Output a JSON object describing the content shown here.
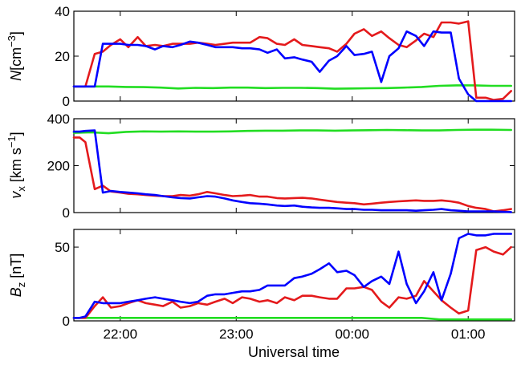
{
  "chart_data": [
    {
      "type": "line",
      "ylabel": {
        "var": "N",
        "unit": "[cm",
        "sup": "−3",
        "close": "]"
      },
      "ylim": [
        0,
        40
      ],
      "yticks": [
        0,
        20,
        40
      ],
      "xlim": [
        21.6,
        25.4
      ],
      "xticks": [
        22,
        23,
        24,
        25
      ],
      "xticklabels": [],
      "series": [
        {
          "color": "#e41a1c",
          "x": [
            21.6,
            21.65,
            21.7,
            21.78,
            21.85,
            21.92,
            22.0,
            22.07,
            22.15,
            22.22,
            22.3,
            22.37,
            22.45,
            22.52,
            22.6,
            22.67,
            22.75,
            22.82,
            22.9,
            22.97,
            23.05,
            23.12,
            23.2,
            23.27,
            23.35,
            23.42,
            23.5,
            23.57,
            23.65,
            23.72,
            23.8,
            23.87,
            23.95,
            24.02,
            24.1,
            24.17,
            24.25,
            24.32,
            24.4,
            24.47,
            24.55,
            24.62,
            24.7,
            24.77,
            24.85,
            24.92,
            25.0,
            25.07,
            25.15,
            25.22,
            25.3,
            25.37
          ],
          "y": [
            6.5,
            6.5,
            6.5,
            21,
            22,
            25,
            27.5,
            24,
            28.5,
            24.5,
            25,
            24.5,
            25.5,
            25.5,
            25.5,
            26,
            25.5,
            25,
            25.5,
            26,
            26,
            26,
            28.5,
            28,
            25.5,
            25,
            27.5,
            25,
            24.5,
            24,
            23.5,
            22,
            25.5,
            30,
            32,
            29,
            31,
            28,
            25,
            24,
            27,
            30,
            28.5,
            35,
            35,
            34.5,
            35.5,
            1.5,
            1.5,
            0.5,
            1,
            4.5
          ]
        },
        {
          "color": "#0000ff",
          "x": [
            21.6,
            21.65,
            21.7,
            21.78,
            21.85,
            21.92,
            22.0,
            22.07,
            22.15,
            22.22,
            22.3,
            22.37,
            22.45,
            22.52,
            22.6,
            22.67,
            22.75,
            22.82,
            22.9,
            22.97,
            23.05,
            23.12,
            23.2,
            23.27,
            23.35,
            23.42,
            23.5,
            23.57,
            23.65,
            23.72,
            23.8,
            23.87,
            23.95,
            24.02,
            24.1,
            24.17,
            24.25,
            24.32,
            24.4,
            24.47,
            24.55,
            24.62,
            24.7,
            24.77,
            24.85,
            24.92,
            25.0,
            25.07,
            25.15,
            25.22,
            25.3,
            25.37
          ],
          "y": [
            6.5,
            6.5,
            6.5,
            6.5,
            25.5,
            25.5,
            25.5,
            25,
            25,
            24.5,
            23,
            24.5,
            24,
            25,
            26.5,
            26,
            25,
            24,
            24,
            24,
            23.5,
            23.5,
            23,
            21.5,
            23,
            19,
            19.5,
            18.5,
            17.5,
            13,
            18,
            20,
            24.5,
            20.5,
            21,
            22,
            8.5,
            20,
            23.5,
            31,
            29,
            24.5,
            31,
            30.5,
            30.5,
            10,
            3,
            0,
            0,
            0,
            0,
            0
          ]
        },
        {
          "color": "#22dd22",
          "x": [
            21.6,
            21.75,
            21.9,
            22.05,
            22.2,
            22.35,
            22.5,
            22.65,
            22.8,
            22.95,
            23.1,
            23.25,
            23.4,
            23.55,
            23.7,
            23.85,
            24.0,
            24.15,
            24.3,
            24.45,
            24.6,
            24.75,
            24.9,
            25.05,
            25.2,
            25.37
          ],
          "y": [
            6.5,
            6.5,
            6.5,
            6.3,
            6.2,
            6.0,
            5.6,
            5.9,
            5.8,
            6.0,
            6.0,
            5.8,
            5.9,
            5.9,
            5.8,
            5.5,
            5.6,
            5.7,
            5.8,
            6.0,
            6.3,
            6.8,
            7.0,
            7.0,
            6.8,
            6.8
          ]
        }
      ]
    },
    {
      "type": "line",
      "ylabel": {
        "var": "v",
        "sub": "x",
        "unit": " [km s",
        "sup": "−1",
        "close": "]"
      },
      "ylim": [
        0,
        400
      ],
      "yticks": [
        0,
        200,
        400
      ],
      "xlim": [
        21.6,
        25.4
      ],
      "xticks": [
        22,
        23,
        24,
        25
      ],
      "xticklabels": [],
      "series": [
        {
          "color": "#e41a1c",
          "x": [
            21.6,
            21.65,
            21.7,
            21.78,
            21.85,
            21.92,
            22.0,
            22.07,
            22.15,
            22.22,
            22.3,
            22.37,
            22.45,
            22.52,
            22.6,
            22.67,
            22.75,
            22.82,
            22.9,
            22.97,
            23.05,
            23.12,
            23.2,
            23.27,
            23.35,
            23.42,
            23.5,
            23.57,
            23.65,
            23.72,
            23.8,
            23.87,
            23.95,
            24.02,
            24.1,
            24.17,
            24.25,
            24.32,
            24.4,
            24.47,
            24.55,
            24.62,
            24.7,
            24.77,
            24.85,
            24.92,
            25.0,
            25.07,
            25.15,
            25.22,
            25.3,
            25.37
          ],
          "y": [
            320,
            320,
            300,
            100,
            115,
            90,
            85,
            80,
            78,
            75,
            72,
            70,
            70,
            75,
            72,
            78,
            88,
            82,
            75,
            70,
            72,
            75,
            68,
            68,
            62,
            60,
            62,
            63,
            60,
            55,
            50,
            45,
            42,
            40,
            35,
            38,
            42,
            45,
            48,
            50,
            52,
            50,
            50,
            52,
            48,
            42,
            28,
            20,
            15,
            5,
            10,
            15
          ]
        },
        {
          "color": "#0000ff",
          "x": [
            21.6,
            21.65,
            21.7,
            21.78,
            21.85,
            21.92,
            22.0,
            22.07,
            22.15,
            22.22,
            22.3,
            22.37,
            22.45,
            22.52,
            22.6,
            22.67,
            22.75,
            22.82,
            22.9,
            22.97,
            23.05,
            23.12,
            23.2,
            23.27,
            23.35,
            23.42,
            23.5,
            23.57,
            23.65,
            23.72,
            23.8,
            23.87,
            23.95,
            24.02,
            24.1,
            24.17,
            24.25,
            24.32,
            24.4,
            24.47,
            24.55,
            24.62,
            24.7,
            24.77,
            24.85,
            24.92,
            25.0,
            25.07,
            25.15,
            25.22,
            25.3,
            25.37
          ],
          "y": [
            345,
            345,
            348,
            350,
            85,
            92,
            88,
            85,
            82,
            78,
            75,
            70,
            65,
            62,
            60,
            65,
            70,
            68,
            60,
            52,
            45,
            40,
            38,
            35,
            30,
            28,
            30,
            25,
            22,
            20,
            20,
            18,
            15,
            15,
            12,
            12,
            10,
            10,
            10,
            10,
            8,
            10,
            12,
            15,
            10,
            8,
            5,
            5,
            5,
            5,
            3,
            2
          ]
        },
        {
          "color": "#22dd22",
          "x": [
            21.6,
            21.75,
            21.9,
            22.05,
            22.2,
            22.35,
            22.5,
            22.65,
            22.8,
            22.95,
            23.1,
            23.25,
            23.4,
            23.55,
            23.7,
            23.85,
            24.0,
            24.15,
            24.3,
            24.45,
            24.6,
            24.75,
            24.9,
            25.05,
            25.2,
            25.37
          ],
          "y": [
            340,
            342,
            338,
            344,
            346,
            345,
            346,
            345,
            345,
            346,
            348,
            349,
            349,
            350,
            350,
            349,
            350,
            351,
            352,
            351,
            350,
            350,
            352,
            353,
            353,
            352
          ]
        }
      ]
    },
    {
      "type": "line",
      "ylabel": {
        "var": "B",
        "sub": "z",
        "unit": " [nT",
        "sup": "",
        "close": "]"
      },
      "ylim": [
        0,
        62
      ],
      "yticks": [
        0,
        50
      ],
      "xlim": [
        21.6,
        25.4
      ],
      "xticks": [
        22,
        23,
        24,
        25
      ],
      "xticklabels": [
        "22:00",
        "23:00",
        "00:00",
        "01:00"
      ],
      "series": [
        {
          "color": "#e41a1c",
          "x": [
            21.6,
            21.65,
            21.7,
            21.78,
            21.85,
            21.92,
            22.0,
            22.07,
            22.15,
            22.22,
            22.3,
            22.37,
            22.45,
            22.52,
            22.6,
            22.67,
            22.75,
            22.82,
            22.9,
            22.97,
            23.05,
            23.12,
            23.2,
            23.27,
            23.35,
            23.42,
            23.5,
            23.57,
            23.65,
            23.72,
            23.8,
            23.87,
            23.95,
            24.02,
            24.1,
            24.17,
            24.25,
            24.32,
            24.4,
            24.47,
            24.55,
            24.62,
            24.7,
            24.77,
            24.85,
            24.92,
            25.0,
            25.07,
            25.15,
            25.22,
            25.3,
            25.37
          ],
          "y": [
            2,
            2,
            2,
            10,
            16,
            9,
            10,
            12,
            14,
            12,
            11,
            10,
            13,
            9,
            10,
            12,
            11,
            13,
            15,
            12,
            16,
            15,
            13,
            14,
            12,
            16,
            14,
            17,
            17,
            16,
            15,
            15,
            22,
            22,
            23,
            21,
            13,
            9,
            16,
            15,
            17,
            27,
            20,
            14,
            9,
            5,
            7,
            48,
            50,
            47,
            45,
            50
          ]
        },
        {
          "color": "#0000ff",
          "x": [
            21.6,
            21.65,
            21.7,
            21.78,
            21.85,
            21.92,
            22.0,
            22.07,
            22.15,
            22.22,
            22.3,
            22.37,
            22.45,
            22.52,
            22.6,
            22.67,
            22.75,
            22.82,
            22.9,
            22.97,
            23.05,
            23.12,
            23.2,
            23.27,
            23.35,
            23.42,
            23.5,
            23.57,
            23.65,
            23.72,
            23.8,
            23.87,
            23.95,
            24.02,
            24.1,
            24.17,
            24.25,
            24.32,
            24.4,
            24.47,
            24.55,
            24.62,
            24.7,
            24.77,
            24.85,
            24.92,
            25.0,
            25.07,
            25.15,
            25.22,
            25.3,
            25.37
          ],
          "y": [
            2,
            2,
            3,
            13,
            12,
            12,
            12,
            13,
            14,
            15,
            16,
            15,
            14,
            13,
            12,
            13,
            17,
            18,
            18,
            19,
            20,
            20,
            21,
            24,
            24,
            24,
            29,
            30,
            32,
            35,
            39,
            33,
            34,
            31,
            23,
            27,
            30,
            25,
            47,
            25,
            12,
            20,
            33,
            14,
            32,
            56,
            59,
            58,
            58,
            59,
            59,
            59
          ]
        },
        {
          "color": "#22dd22",
          "x": [
            21.6,
            21.75,
            21.9,
            22.05,
            22.2,
            22.35,
            22.5,
            22.65,
            22.8,
            22.95,
            23.1,
            23.25,
            23.4,
            23.55,
            23.7,
            23.85,
            24.0,
            24.15,
            24.3,
            24.45,
            24.6,
            24.75,
            24.9,
            25.05,
            25.2,
            25.37
          ],
          "y": [
            2,
            2,
            2,
            2,
            2,
            2,
            2,
            2,
            2,
            2,
            2,
            2,
            2,
            2,
            2,
            2,
            2,
            2,
            2,
            2,
            2,
            1,
            1,
            1,
            1,
            1
          ]
        }
      ]
    }
  ],
  "xaxis_label": "Universal time"
}
